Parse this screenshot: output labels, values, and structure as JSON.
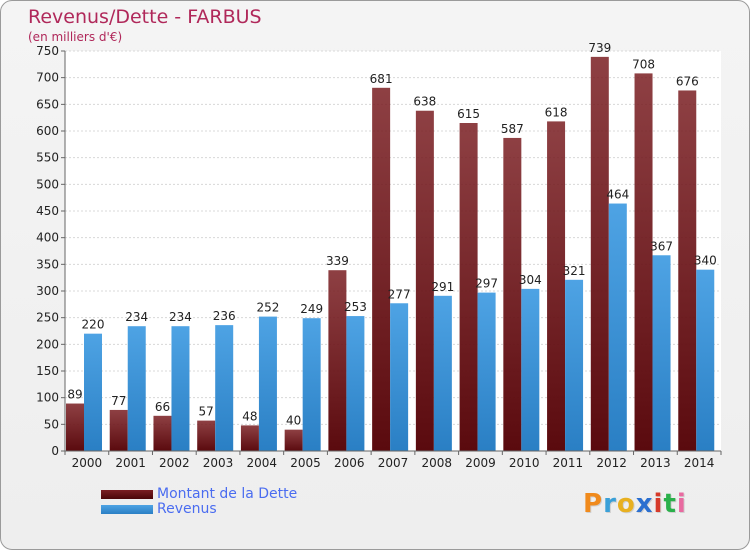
{
  "title": "Revenus/Dette - FARBUS",
  "subtitle": "(en milliers d'€)",
  "colors": {
    "title": "#b0285a",
    "dette": "#7a1e22",
    "revenus": "#4ea3e4",
    "legend_text": "#4a6cf0"
  },
  "legend": {
    "dette_label": "Montant de la Dette",
    "revenus_label": "Revenus"
  },
  "logo": {
    "text": "Proxiti",
    "letters": [
      {
        "char": "P",
        "color": "#f08a1c"
      },
      {
        "char": "r",
        "color": "#3aa0d8"
      },
      {
        "char": "o",
        "color": "#e8b020"
      },
      {
        "char": "x",
        "color": "#2b6fd0"
      },
      {
        "char": "i",
        "color": "#d63a2a"
      },
      {
        "char": "t",
        "color": "#2ab04a"
      },
      {
        "char": "i",
        "color": "#e86aa0"
      }
    ]
  },
  "chart_data": {
    "type": "bar",
    "categories": [
      "2000",
      "2001",
      "2002",
      "2003",
      "2004",
      "2005",
      "2006",
      "2007",
      "2008",
      "2009",
      "2010",
      "2011",
      "2012",
      "2013",
      "2014"
    ],
    "series": [
      {
        "name": "Montant de la Dette",
        "values": [
          89,
          77,
          66,
          57,
          48,
          40,
          339,
          681,
          638,
          615,
          587,
          618,
          739,
          708,
          676
        ]
      },
      {
        "name": "Revenus",
        "values": [
          220,
          234,
          234,
          236,
          252,
          249,
          253,
          277,
          291,
          297,
          304,
          321,
          464,
          367,
          340
        ]
      }
    ],
    "ylim": [
      0,
      750
    ],
    "yticks": [
      0,
      50,
      100,
      150,
      200,
      250,
      300,
      350,
      400,
      450,
      500,
      550,
      600,
      650,
      700,
      750
    ],
    "grid": true,
    "legend_position": "bottom-left"
  }
}
